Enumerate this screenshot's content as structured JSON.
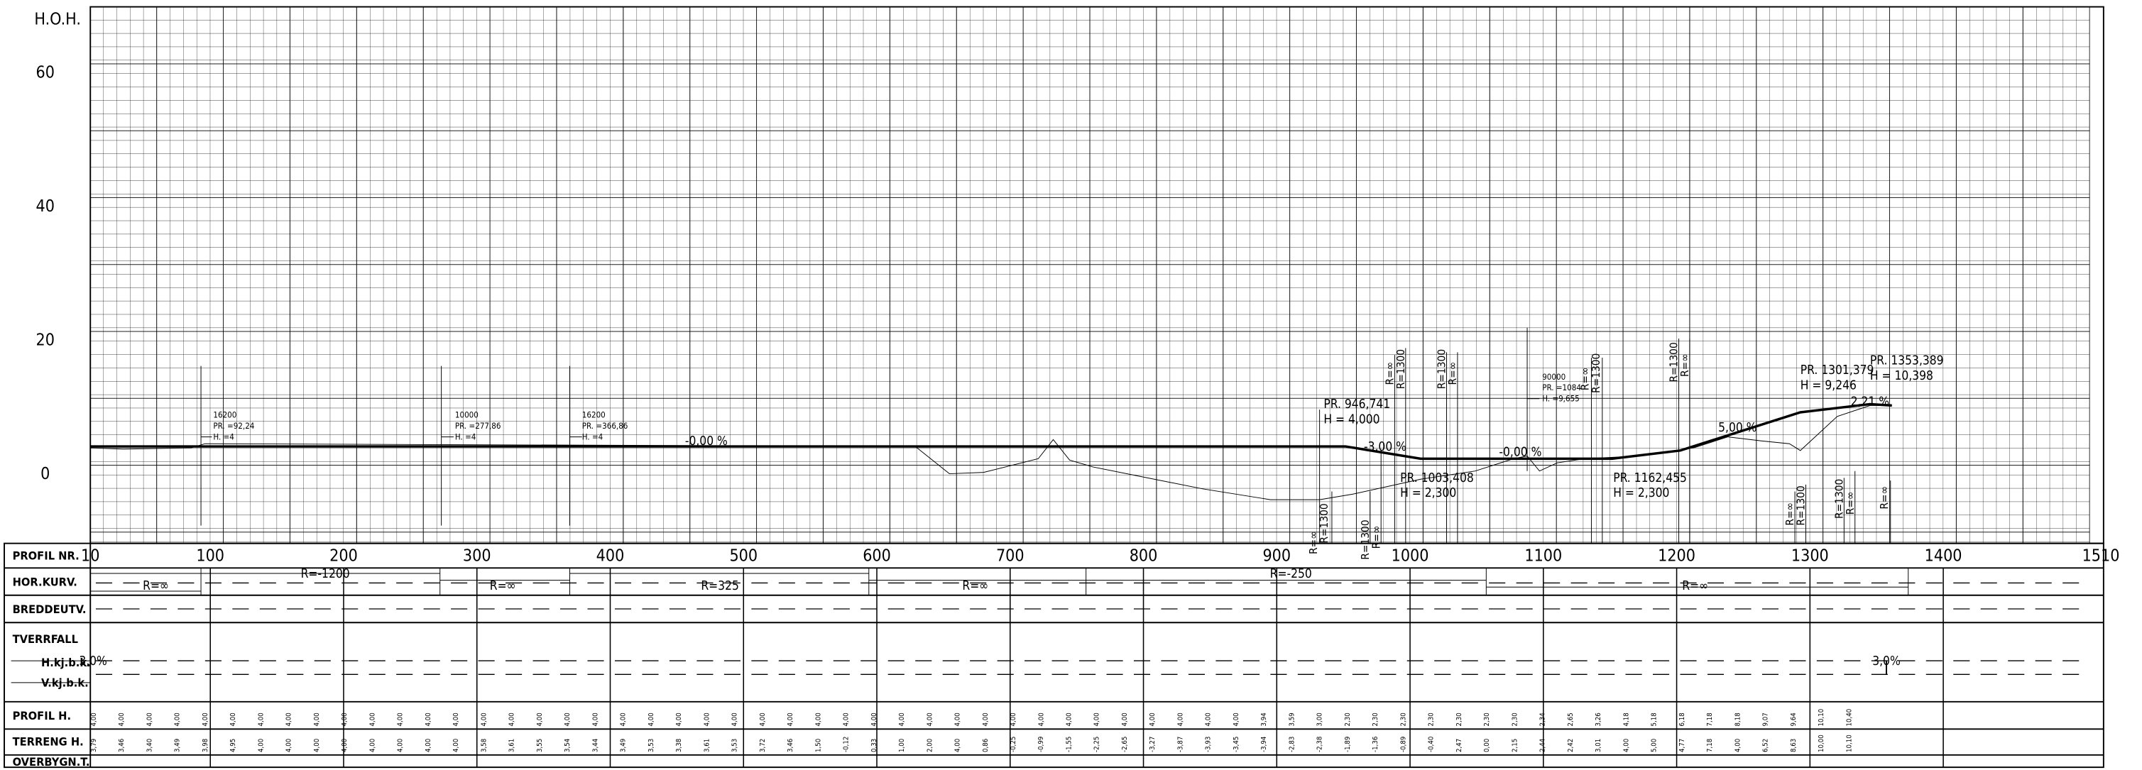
{
  "axis": {
    "y_title": "H.O.H.",
    "y_ticks": [
      "60",
      "40",
      "20",
      "0"
    ],
    "x_ticks": [
      "10",
      "100",
      "200",
      "300",
      "400",
      "500",
      "600",
      "700",
      "800",
      "900",
      "1000",
      "1100",
      "1200",
      "1300",
      "1400",
      "1510"
    ]
  },
  "row_labels": [
    "PROFIL NR.",
    "HOR.KURV.",
    "BREDDEUTV.",
    "TVERRFALL",
    "H.kj.b.k.",
    "V.kj.b.k.",
    "PROFIL H.",
    "TERRENG H.",
    "OVERBYGN.T."
  ],
  "hor_kurv": [
    "R=∞",
    "R=-1200",
    "R=∞",
    "R=325",
    "R=∞",
    "R=-250",
    "R=∞"
  ],
  "tverrfall": [
    "3,0%",
    "3,0%"
  ],
  "slopes": [
    "-0,00 %",
    "-3,00 %",
    "-0,00 %",
    "5,00 %",
    "2,21 %"
  ],
  "annotations": [
    [
      "16200",
      "PR. =92,24",
      "H. =4"
    ],
    [
      "10000",
      "PR. =277,86",
      "H. =4"
    ],
    [
      "16200",
      "PR. =366,86",
      "H. =4"
    ],
    [
      "PR. 946,741",
      "H = 4,000"
    ],
    [
      "PR. 1003,408",
      "H = 2,300"
    ],
    [
      "90000",
      "PR. =1084",
      "H. =9,655"
    ],
    [
      "PR. 1162,455",
      "H = 2,300"
    ],
    [
      "PR. 1301,379",
      "H = 9,246"
    ],
    [
      "PR. 1353,389",
      "H = 10,398"
    ]
  ],
  "radius_labels": [
    "R=∞",
    "R=1300",
    "R=1300",
    "R=∞",
    "R=∞",
    "R=1300",
    "R=1300",
    "R=∞",
    "R=∞",
    "R=1300",
    "R=1300",
    "R=∞",
    "R=∞",
    "R=1300",
    "R=1300",
    "R=∞",
    "R=∞"
  ],
  "profil_h": [
    "4,00",
    "4,00",
    "4,00",
    "4,00",
    "4,00",
    "4,00",
    "4,00",
    "4,00",
    "4,00",
    "4,00",
    "4,00",
    "4,00",
    "4,00",
    "4,00",
    "4,00",
    "4,00",
    "4,00",
    "4,00",
    "4,00",
    "4,00",
    "4,00",
    "4,00",
    "4,00",
    "4,00",
    "4,00",
    "4,00",
    "4,00",
    "4,00",
    "4,00",
    "4,00",
    "4,00",
    "4,00",
    "4,00",
    "4,00",
    "4,00",
    "4,00",
    "4,00",
    "4,00",
    "4,00",
    "4,00",
    "4,00",
    "4,00",
    "3,94",
    "3,59",
    "3,00",
    "2,30",
    "2,30",
    "2,30",
    "2,30",
    "2,30",
    "2,30",
    "2,30",
    "2,34",
    "2,65",
    "3,26",
    "4,18",
    "5,18",
    "6,18",
    "7,18",
    "8,18",
    "9,07",
    "9,64",
    "10,10",
    "10,40"
  ],
  "terreng_h": [
    "3,79",
    "3,46",
    "3,40",
    "3,49",
    "3,98",
    "4,95",
    "4,00",
    "4,00",
    "4,00",
    "4,00",
    "4,00",
    "4,00",
    "4,00",
    "4,00",
    "3,58",
    "3,61",
    "3,55",
    "3,54",
    "3,44",
    "3,49",
    "3,53",
    "3,38",
    "3,61",
    "3,53",
    "3,72",
    "3,46",
    "1,50",
    "-0,12",
    "0,33",
    "1,00",
    "2,00",
    "4,00",
    "0,86",
    "-0,25",
    "-0,99",
    "-1,55",
    "-2,25",
    "-2,65",
    "-3,27",
    "-3,87",
    "-3,93",
    "-3,45",
    "-3,94",
    "-2,83",
    "-2,38",
    "-1,89",
    "-1,36",
    "-0,89",
    "-0,40",
    "2,47",
    "0,00",
    "2,15",
    "2,44",
    "2,42",
    "3,01",
    "4,00",
    "5,00",
    "4,77",
    "7,18",
    "4,00",
    "6,52",
    "8,63",
    "10,00",
    "10,10"
  ]
}
